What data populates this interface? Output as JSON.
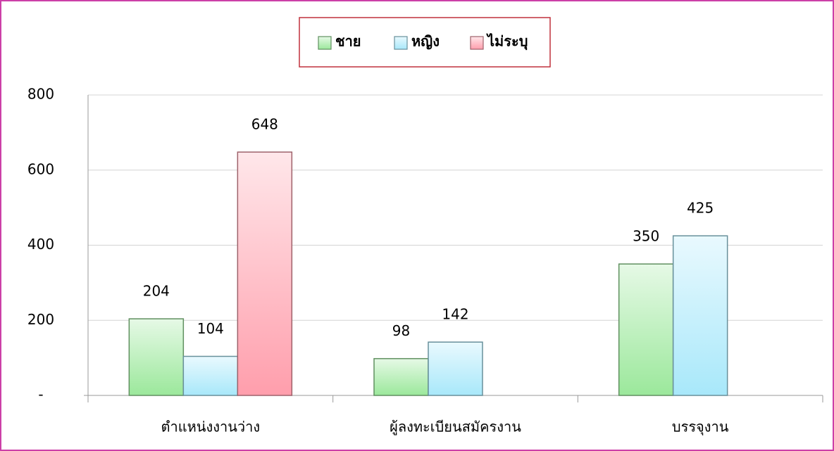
{
  "chart_data": {
    "type": "bar",
    "categories": [
      "ตำแหน่งงานว่าง",
      "ผู้ลงทะเบียนสมัครงาน",
      "บรรจุงาน"
    ],
    "series": [
      {
        "name": "ชาย",
        "color": "#9be89b",
        "values": [
          204,
          98,
          350
        ]
      },
      {
        "name": "หญิง",
        "color": "#a8e8fa",
        "values": [
          104,
          142,
          425
        ]
      },
      {
        "name": "ไม่ระบุ",
        "color": "#ff9eac",
        "values": [
          648,
          null,
          null
        ]
      }
    ],
    "ylim": [
      0,
      800
    ],
    "yticks": [
      {
        "value": 0,
        "label": "-"
      },
      200,
      400,
      600,
      800
    ],
    "grid": true,
    "legend": "top"
  }
}
